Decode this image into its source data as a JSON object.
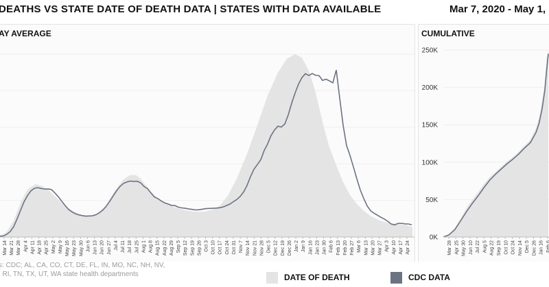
{
  "header": {
    "title": "DEATHS VS STATE DATE OF DEATH DATA | STATES WITH DATA AVAILABLE",
    "date_range": "Mar 7, 2020 - May 1,"
  },
  "footer": {
    "sources_line1": "s: CDC; AL, CA, CO, CT, DE, FL, IN, MO, NC, NH, NV,",
    "sources_line2": ", RI, TN, TX, UT, WA state health departments"
  },
  "legend": {
    "date_of_death": "DATE OF DEATH",
    "cdc_data": "CDC DATA"
  },
  "colors": {
    "date_of_death_fill": "#e4e4e4",
    "cdc_line": "#6b7282"
  },
  "chart_data": [
    {
      "type": "area",
      "title": "AY AVERAGE",
      "xlabel": "",
      "ylabel": "",
      "ylim": [
        0,
        1
      ],
      "grid": true,
      "legend": "bottom",
      "x_tick_labels": [
        "Mar 14",
        "Mar 21",
        "Mar 28",
        "Apr 4",
        "Apr 11",
        "Apr 18",
        "Apr 25",
        "May 2",
        "May 9",
        "May 16",
        "May 23",
        "May 30",
        "Jun 6",
        "Jun 13",
        "Jun 20",
        "Jun 27",
        "Jul 4",
        "Jul 11",
        "Jul 18",
        "Jul 25",
        "Aug 1",
        "Aug 8",
        "Aug 15",
        "Aug 22",
        "Aug 29",
        "Sep 5",
        "Sep 12",
        "Sep 19",
        "Sep 26",
        "Oct 3",
        "Oct 10",
        "Oct 17",
        "Oct 24",
        "Oct 31",
        "Nov 7",
        "Nov 14",
        "Nov 21",
        "Nov 28",
        "Dec 5",
        "Dec 12",
        "Dec 19",
        "Dec 26",
        "Jan 2",
        "Jan 9",
        "Jan 16",
        "Jan 23",
        "Jan 30",
        "Feb 6",
        "Feb 13",
        "Feb 20",
        "Feb 27",
        "Mar 6",
        "Mar 13",
        "Mar 20",
        "Mar 27",
        "Apr 3",
        "Apr 10",
        "Apr 17",
        "Apr 24"
      ],
      "series": [
        {
          "name": "DATE OF DEATH",
          "style": "area",
          "x": [
            -2,
            5,
            10,
            20,
            30,
            40,
            52,
            62,
            70,
            80,
            90,
            100,
            110,
            120,
            132,
            142,
            155,
            165,
            180,
            190,
            198,
            205,
            212,
            220,
            230,
            240,
            250,
            260,
            270,
            280,
            290,
            300,
            310,
            320,
            332,
            345,
            360,
            375,
            390,
            405,
            418,
            430,
            440,
            450,
            458,
            465,
            472,
            480,
            490,
            500,
            510,
            520,
            530,
            540,
            552,
            565,
            580,
            592,
            601
          ],
          "values": [
            0.007,
            0.015,
            0.03,
            0.09,
            0.19,
            0.26,
            0.29,
            0.278,
            0.26,
            0.223,
            0.186,
            0.157,
            0.135,
            0.12,
            0.118,
            0.128,
            0.175,
            0.24,
            0.315,
            0.339,
            0.339,
            0.32,
            0.285,
            0.245,
            0.21,
            0.188,
            0.17,
            0.157,
            0.147,
            0.14,
            0.137,
            0.14,
            0.15,
            0.17,
            0.225,
            0.32,
            0.454,
            0.612,
            0.773,
            0.9,
            0.974,
            1.0,
            0.98,
            0.91,
            0.816,
            0.71,
            0.598,
            0.491,
            0.392,
            0.3,
            0.23,
            0.18,
            0.143,
            0.115,
            0.092,
            0.078,
            0.07,
            0.065,
            0.055
          ]
        },
        {
          "name": "CDC DATA",
          "style": "line",
          "x": [
            -2,
            5,
            10,
            15,
            20,
            25,
            30,
            35,
            40,
            45,
            50,
            55,
            60,
            65,
            70,
            75,
            80,
            85,
            90,
            95,
            100,
            105,
            110,
            115,
            120,
            125,
            130,
            135,
            140,
            145,
            150,
            155,
            160,
            165,
            170,
            175,
            180,
            185,
            190,
            195,
            200,
            205,
            210,
            215,
            220,
            225,
            230,
            235,
            240,
            245,
            250,
            255,
            260,
            265,
            270,
            275,
            280,
            285,
            290,
            295,
            300,
            305,
            310,
            315,
            320,
            325,
            330,
            335,
            340,
            345,
            350,
            355,
            360,
            365,
            370,
            375,
            380,
            385,
            390,
            395,
            400,
            405,
            410,
            415,
            420,
            425,
            430,
            435,
            440,
            445,
            450,
            455,
            460,
            465,
            470,
            475,
            480,
            485,
            490,
            495,
            500,
            505,
            510,
            515,
            520,
            525,
            530,
            535,
            540,
            545,
            550,
            555,
            560,
            565,
            570,
            575,
            580,
            585,
            590,
            595,
            600
          ],
          "values": [
            0.003,
            0.006,
            0.015,
            0.03,
            0.057,
            0.1,
            0.146,
            0.192,
            0.226,
            0.252,
            0.266,
            0.27,
            0.265,
            0.262,
            0.263,
            0.259,
            0.241,
            0.22,
            0.195,
            0.172,
            0.15,
            0.137,
            0.127,
            0.121,
            0.117,
            0.114,
            0.115,
            0.116,
            0.122,
            0.133,
            0.148,
            0.169,
            0.196,
            0.225,
            0.253,
            0.277,
            0.293,
            0.301,
            0.306,
            0.304,
            0.305,
            0.296,
            0.276,
            0.264,
            0.241,
            0.219,
            0.21,
            0.197,
            0.187,
            0.18,
            0.173,
            0.172,
            0.163,
            0.159,
            0.157,
            0.153,
            0.151,
            0.148,
            0.149,
            0.152,
            0.155,
            0.156,
            0.157,
            0.158,
            0.16,
            0.164,
            0.172,
            0.18,
            0.193,
            0.205,
            0.222,
            0.246,
            0.282,
            0.33,
            0.37,
            0.396,
            0.423,
            0.473,
            0.509,
            0.555,
            0.585,
            0.606,
            0.601,
            0.618,
            0.667,
            0.731,
            0.787,
            0.836,
            0.872,
            0.893,
            0.883,
            0.894,
            0.884,
            0.882,
            0.856,
            0.863,
            0.854,
            0.843,
            0.913,
            0.76,
            0.611,
            0.5,
            0.446,
            0.383,
            0.318,
            0.257,
            0.211,
            0.17,
            0.144,
            0.13,
            0.119,
            0.108,
            0.098,
            0.086,
            0.071,
            0.066,
            0.074,
            0.075,
            0.072,
            0.071,
            0.067
          ]
        }
      ]
    },
    {
      "type": "area",
      "title": "CUMULATIVE",
      "ylim": [
        0,
        250000
      ],
      "y_ticks": [
        0,
        50000,
        100000,
        150000,
        200000,
        250000
      ],
      "y_tick_labels": [
        "0K",
        "50K",
        "100K",
        "150K",
        "200K",
        "250K"
      ],
      "x_tick_labels": [
        "Mar 28",
        "Apr 25",
        "May 30",
        "Jun 10",
        "Jul 22",
        "Aug 5",
        "Aug 22",
        "Sep 19",
        "Oct 10",
        "Oct 24",
        "Nov 14",
        "Dec 5",
        "Dec 26",
        "Jan 16",
        "Feb 6"
      ],
      "series": [
        {
          "name": "DATE OF DEATH",
          "style": "area",
          "x": [
            0,
            10,
            20,
            30,
            40,
            50,
            60,
            70,
            80,
            90,
            100,
            110,
            120,
            130,
            140,
            150,
            160,
            165,
            170,
            174,
            176,
            178,
            181
          ],
          "values": [
            0,
            4000,
            12000,
            25000,
            39000,
            50000,
            60000,
            71000,
            80000,
            87000,
            94000,
            101000,
            107000,
            114000,
            122000,
            130000,
            146000,
            160000,
            180000,
            200000,
            220000,
            240000,
            250000
          ]
        },
        {
          "name": "CDC DATA",
          "style": "line",
          "x": [
            0,
            10,
            20,
            30,
            40,
            50,
            60,
            70,
            80,
            90,
            100,
            110,
            120,
            130,
            140,
            150,
            160,
            165,
            170,
            175,
            178,
            181
          ],
          "values": [
            0,
            3000,
            10000,
            22000,
            34000,
            45000,
            55000,
            66000,
            76000,
            84000,
            91000,
            98000,
            104000,
            111000,
            119000,
            126000,
            140000,
            152000,
            170000,
            196000,
            222000,
            245000
          ]
        }
      ]
    }
  ]
}
